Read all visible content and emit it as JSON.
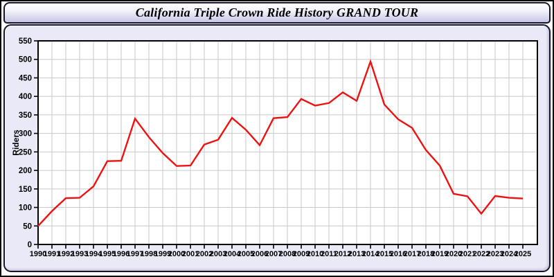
{
  "header": {
    "title": "California Triple Crown Ride History GRAND TOUR"
  },
  "chart_data": {
    "type": "line",
    "title": "California Triple Crown Ride History GRAND TOUR",
    "xlabel": "",
    "ylabel": "Riders",
    "x": [
      1990,
      1991,
      1992,
      1993,
      1994,
      1995,
      1996,
      1997,
      1998,
      1999,
      2000,
      2001,
      2002,
      2003,
      2004,
      2005,
      2006,
      2007,
      2008,
      2009,
      2010,
      2011,
      2012,
      2013,
      2014,
      2015,
      2016,
      2017,
      2018,
      2019,
      2020,
      2021,
      2022,
      2023,
      2024,
      2025
    ],
    "series": [
      {
        "name": "Riders",
        "values": [
          50,
          90,
          125,
          126,
          157,
          225,
          226,
          340,
          290,
          247,
          212,
          213,
          270,
          283,
          342,
          310,
          268,
          341,
          344,
          393,
          375,
          382,
          411,
          388,
          494,
          378,
          338,
          315,
          255,
          213,
          137,
          130,
          83,
          131,
          126,
          124
        ]
      }
    ],
    "ylim": [
      0,
      550
    ],
    "ytick_step": 50,
    "grid": true,
    "legend": false
  },
  "colors": {
    "line": "#ee1111",
    "grid": "#c9c9c9",
    "axis": "#000000",
    "plot_bg": "#ffffff",
    "panel_bg": "#e9e9f8",
    "frame_border": "#14142e",
    "window_border": "#000000"
  }
}
